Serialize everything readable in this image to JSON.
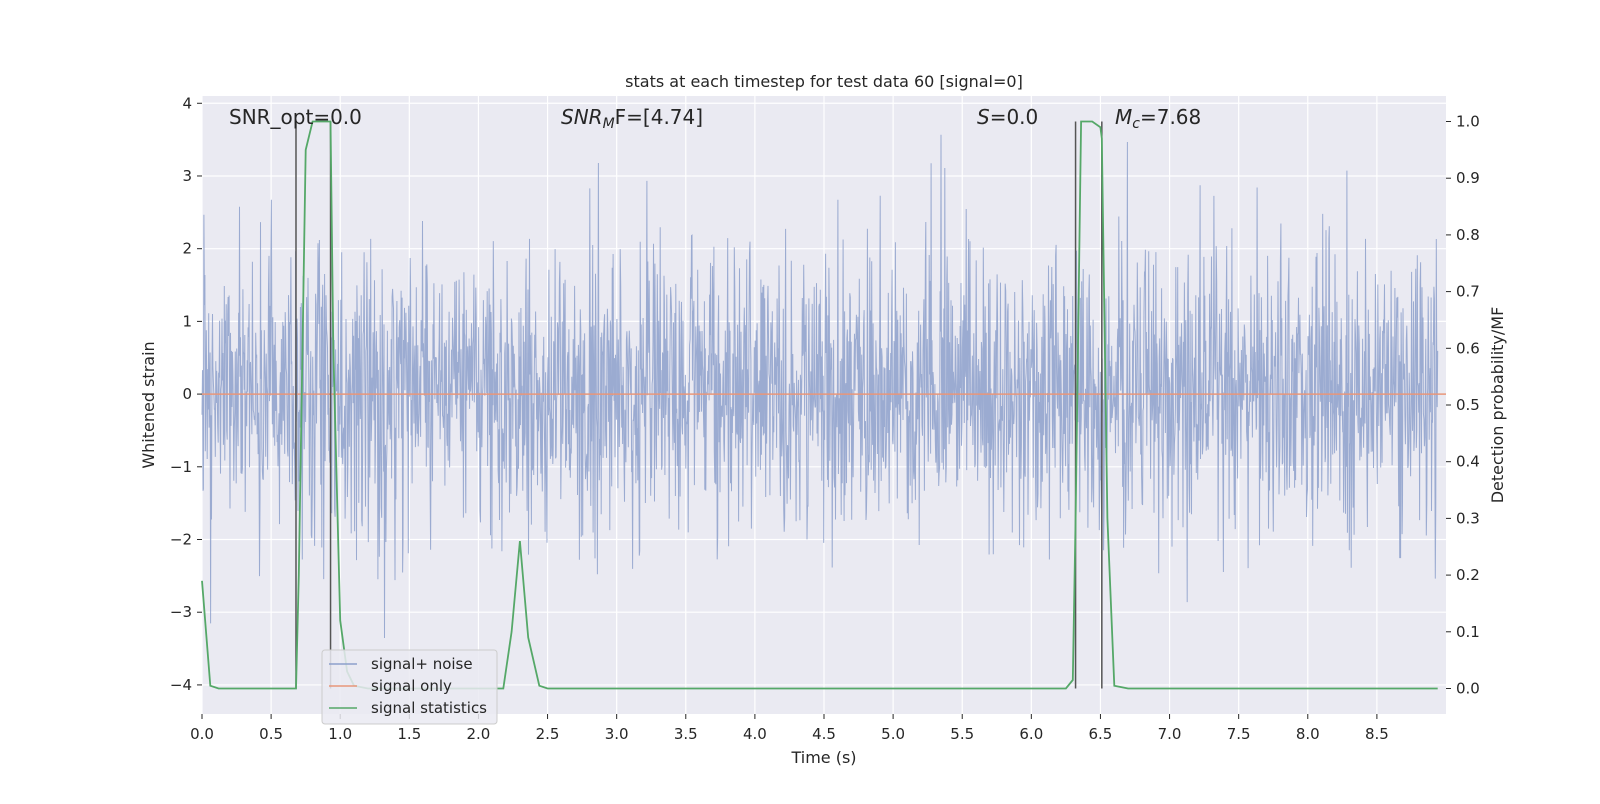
{
  "chart_data": {
    "type": "line",
    "title": "stats at each timestep for test data 60 [signal=0]",
    "xlabel": "Time (s)",
    "ylabel_left": "Whitened strain",
    "ylabel_right": "Detection probability/MF",
    "xlim": [
      0.0,
      9.0
    ],
    "ylim_left": [
      -4.4,
      4.1
    ],
    "ylim_right": [
      -0.045,
      1.045
    ],
    "xticks": [
      0.0,
      0.5,
      1.0,
      1.5,
      2.0,
      2.5,
      3.0,
      3.5,
      4.0,
      4.5,
      5.0,
      5.5,
      6.0,
      6.5,
      7.0,
      7.5,
      8.0,
      8.5
    ],
    "xtick_labels": [
      "0.0",
      "0.5",
      "1.0",
      "1.5",
      "2.0",
      "2.5",
      "3.0",
      "3.5",
      "4.0",
      "4.5",
      "5.0",
      "5.5",
      "6.0",
      "6.5",
      "7.0",
      "7.5",
      "8.0",
      "8.5"
    ],
    "yticks_left": [
      4,
      3,
      2,
      1,
      0,
      -1,
      -2,
      -3,
      -4
    ],
    "ytick_labels_left": [
      "4",
      "3",
      "2",
      "1",
      "0",
      "−1",
      "−2",
      "−3",
      "−4"
    ],
    "yticks_right": [
      1.0,
      0.9,
      0.8,
      0.7,
      0.6,
      0.5,
      0.4,
      0.3,
      0.2,
      0.1,
      0.0
    ],
    "ytick_labels_right": [
      "1.0",
      "0.9",
      "0.8",
      "0.7",
      "0.6",
      "0.5",
      "0.4",
      "0.3",
      "0.2",
      "0.1",
      "0.0"
    ],
    "grid": true,
    "legend_position": "lower-left",
    "annotations": {
      "snr_opt": "SNR_opt=0.0",
      "snr_mf_sym": "SNR",
      "snr_mf_sub": "M",
      "snr_mf_rest": "F=[4.74]",
      "s_sym": "S",
      "s_rest": "=0.0",
      "mc_sym": "M",
      "mc_sub": "c",
      "mc_rest": "=7.68"
    },
    "vertical_markers": [
      0.68,
      0.93,
      6.32,
      6.51
    ],
    "series": [
      {
        "name": "signal+ noise",
        "axis": "left",
        "color": "#8da0cb",
        "description_values": "whitened Gaussian noise, roughly within -2.5 to 2.5 with excursions to about 3.8 and -4"
      },
      {
        "name": "signal only",
        "axis": "left",
        "color": "#e8967a",
        "x": [
          0.0,
          9.0
        ],
        "values": [
          0.0,
          0.0
        ]
      },
      {
        "name": "signal statistics",
        "axis": "right",
        "color": "#55a868",
        "x": [
          0.0,
          0.06,
          0.12,
          0.2,
          0.3,
          0.4,
          0.5,
          0.6,
          0.68,
          0.7,
          0.75,
          0.8,
          0.85,
          0.9,
          0.93,
          0.95,
          1.0,
          1.05,
          1.1,
          1.2,
          1.5,
          1.8,
          2.0,
          2.1,
          2.18,
          2.24,
          2.3,
          2.36,
          2.44,
          2.5,
          2.6,
          3.0,
          4.0,
          5.0,
          6.0,
          6.25,
          6.3,
          6.32,
          6.36,
          6.44,
          6.5,
          6.51,
          6.55,
          6.6,
          6.7,
          7.0,
          8.0,
          8.94
        ],
        "values": [
          0.19,
          0.005,
          0.0,
          0.0,
          0.0,
          0.0,
          0.0,
          0.0,
          0.0,
          0.2,
          0.95,
          1.0,
          1.0,
          1.0,
          1.0,
          0.6,
          0.12,
          0.03,
          0.005,
          0.0,
          0.0,
          0.0,
          0.0,
          0.0,
          0.0,
          0.1,
          0.26,
          0.09,
          0.005,
          0.0,
          0.0,
          0.0,
          0.0,
          0.0,
          0.0,
          0.0,
          0.015,
          0.3,
          1.0,
          1.0,
          0.99,
          0.97,
          0.3,
          0.005,
          0.0,
          0.0,
          0.0,
          0.0
        ]
      }
    ]
  }
}
